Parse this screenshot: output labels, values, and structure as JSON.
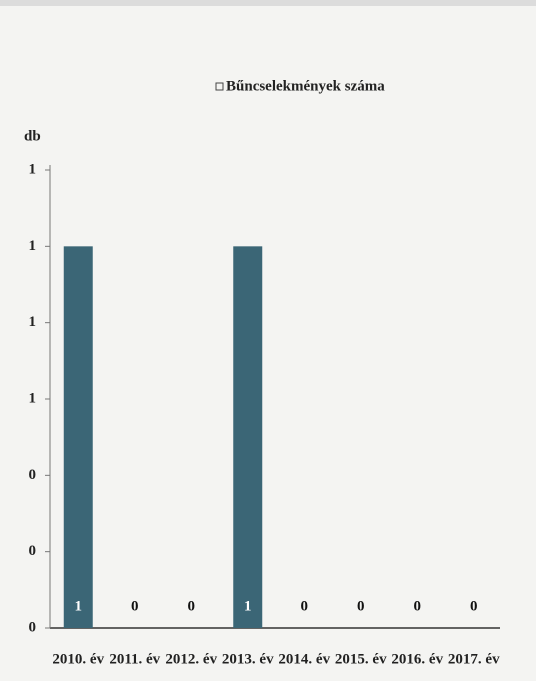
{
  "chart_data": {
    "type": "bar",
    "legend": "Bűncselekmények száma",
    "y_label": "db",
    "categories": [
      "2010. év",
      "2011. év",
      "2012. év",
      "2013. év",
      "2014. év",
      "2015. év",
      "2016. év",
      "2017. év"
    ],
    "values": [
      1,
      0,
      0,
      1,
      0,
      0,
      0,
      0
    ],
    "color": "#3b6676",
    "ylim": [
      0,
      1.2
    ],
    "yticks": [
      {
        "value": 0,
        "label": "0"
      },
      {
        "value": 0.2,
        "label": "0"
      },
      {
        "value": 0.4,
        "label": "0"
      },
      {
        "value": 0.6,
        "label": "1"
      },
      {
        "value": 0.8,
        "label": "1"
      },
      {
        "value": 1.0,
        "label": "1"
      },
      {
        "value": 1.2,
        "label": "1"
      }
    ]
  }
}
